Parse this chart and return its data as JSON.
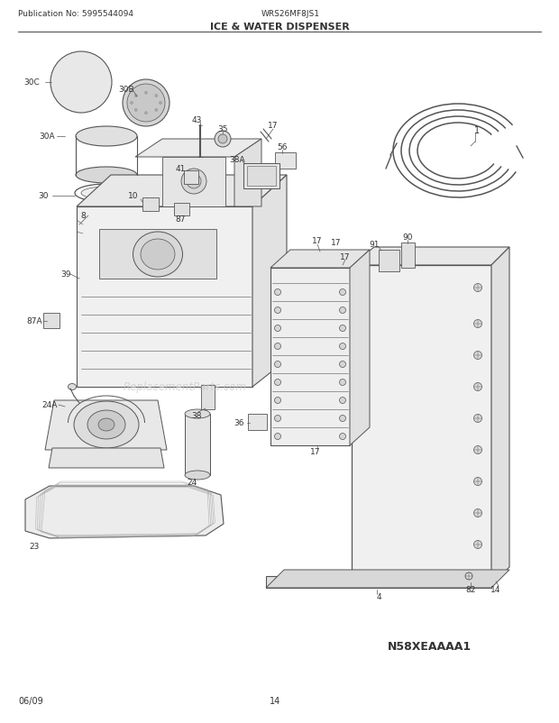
{
  "title": "ICE & WATER DISPENSER",
  "pub_no": "Publication No: 5995544094",
  "model": "WRS26MF8JS1",
  "date": "06/09",
  "page": "14",
  "part_code": "N58XEAAAA1",
  "bg_color": "#ffffff",
  "lc": "#555555",
  "lbl": "#333333",
  "wm": "ReplacementParts.com",
  "wm_color": "#c8c8c8"
}
